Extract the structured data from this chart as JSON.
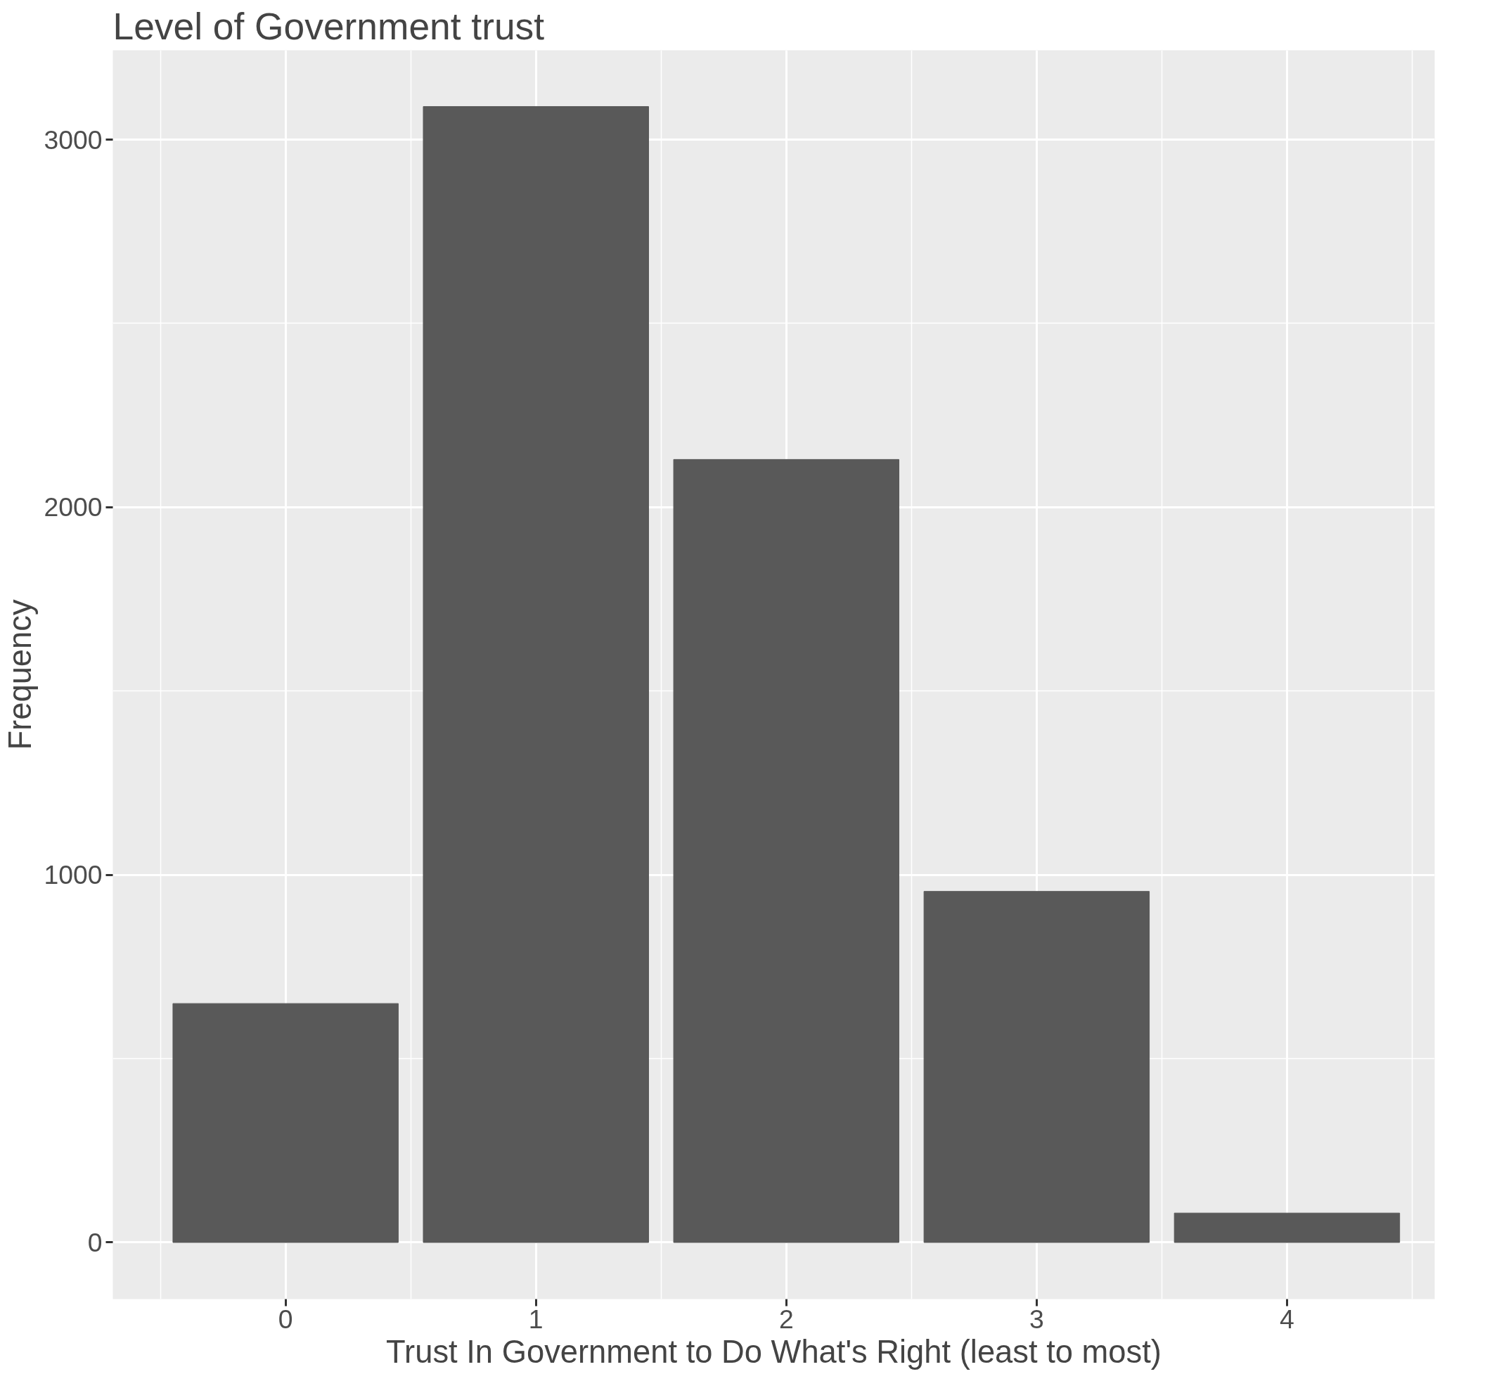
{
  "chart_data": {
    "type": "bar",
    "title": "Level of Government trust",
    "xlabel": "Trust In Government to Do What's Right (least to most)",
    "ylabel": "Frequency",
    "x": [
      0,
      1,
      2,
      3,
      4
    ],
    "values": [
      650,
      3090,
      2130,
      955,
      80
    ],
    "color": "#595959",
    "xlim": [
      -0.69,
      4.59
    ],
    "xticks": [
      0,
      1,
      2,
      3,
      4
    ],
    "ylim": [
      -154,
      3243
    ],
    "yticks": [
      0,
      1000,
      2000,
      3000
    ],
    "grid": true
  }
}
